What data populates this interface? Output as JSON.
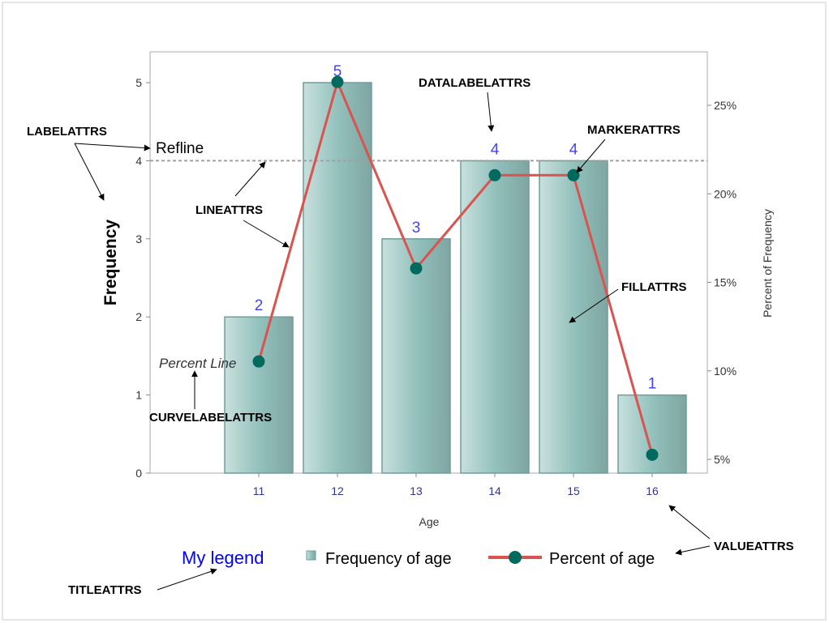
{
  "chart_data": {
    "type": "bar-line",
    "categories": [
      "11",
      "12",
      "13",
      "14",
      "15",
      "16"
    ],
    "series": [
      {
        "name": "Frequency of age",
        "type": "bar",
        "axis": "left",
        "values": [
          2,
          5,
          3,
          4,
          4,
          1
        ],
        "data_labels": [
          "2",
          "5",
          "3",
          "4",
          "4",
          "1"
        ]
      },
      {
        "name": "Percent of age",
        "type": "line",
        "axis": "right",
        "values": [
          10.53,
          26.32,
          15.79,
          21.05,
          21.05,
          5.26
        ],
        "curve_label": "Percent Line"
      }
    ],
    "xlabel": "Age",
    "ylabel": "Frequency",
    "y2label": "Percent of Frequency",
    "yticks": [
      0,
      1,
      2,
      3,
      4,
      5
    ],
    "y2ticks": [
      "5%",
      "10%",
      "15%",
      "20%",
      "25%"
    ],
    "y2tick_values": [
      5,
      10,
      15,
      20,
      25
    ],
    "refline": {
      "value": 4,
      "label": "Refline"
    },
    "legend": {
      "title": "My legend",
      "placement": "bottom"
    },
    "colors": {
      "bar_fill": "#93c1bd",
      "bar_edge": "#6f9e9a",
      "line": "#d9534f",
      "marker": "#006a5e",
      "data_label": "#4444ee",
      "value_text": "#33339a",
      "legend_title": "#0000ff"
    }
  },
  "annotations": {
    "labelattrs": "LABELATTRS",
    "lineattrs": "LINEATTRS",
    "datalabelattrs": "DATALABELATTRS",
    "markerattrs": "MARKERATTRS",
    "fillattrs": "FILLATTRS",
    "curvelabelattrs": "CURVELABELATTRS",
    "valueattrs": "VALUEATTRS",
    "titleattrs": "TITLEATTRS"
  }
}
